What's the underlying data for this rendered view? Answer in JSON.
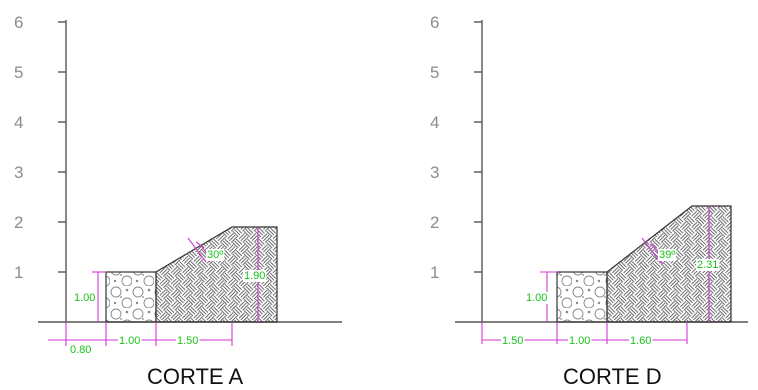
{
  "colors": {
    "dimension_line": "#d23ad2",
    "dimension_text": "#19c219",
    "axis": "#555555",
    "tick_label": "#8c8c8c",
    "title": "#111111"
  },
  "sections": [
    {
      "title": "CORTE A",
      "y_ticks": [
        "6",
        "5",
        "4",
        "3",
        "2",
        "1"
      ],
      "dims": {
        "left_offset": "0.80",
        "filter_width": "1.00",
        "slope_base": "1.50",
        "filter_height": "1.00",
        "fill_height": "1.90",
        "angle": "30º"
      },
      "patterns": [
        "circles-texture",
        "basketweave-hatch"
      ]
    },
    {
      "title": "CORTE D",
      "y_ticks": [
        "6",
        "5",
        "4",
        "3",
        "2",
        "1"
      ],
      "dims": {
        "left_offset": "1.50",
        "filter_width": "1.00",
        "slope_base": "1.60",
        "filter_height": "1.00",
        "fill_height": "2.31",
        "angle": "39º"
      },
      "patterns": [
        "circles-texture",
        "basketweave-hatch"
      ]
    }
  ]
}
